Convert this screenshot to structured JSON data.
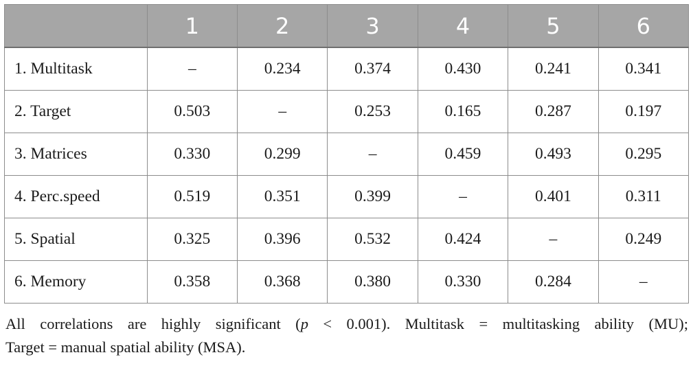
{
  "table": {
    "header": [
      "",
      "1",
      "2",
      "3",
      "4",
      "5",
      "6"
    ],
    "rows": [
      {
        "label": "1. Multitask",
        "cells": [
          "–",
          "0.234",
          "0.374",
          "0.430",
          "0.241",
          "0.341"
        ]
      },
      {
        "label": "2. Target",
        "cells": [
          "0.503",
          "–",
          "0.253",
          "0.165",
          "0.287",
          "0.197"
        ]
      },
      {
        "label": "3. Matrices",
        "cells": [
          "0.330",
          "0.299",
          "–",
          "0.459",
          "0.493",
          "0.295"
        ]
      },
      {
        "label": "4. Perc.speed",
        "cells": [
          "0.519",
          "0.351",
          "0.399",
          "–",
          "0.401",
          "0.311"
        ]
      },
      {
        "label": "5. Spatial",
        "cells": [
          "0.325",
          "0.396",
          "0.532",
          "0.424",
          "–",
          "0.249"
        ]
      },
      {
        "label": "6. Memory",
        "cells": [
          "0.358",
          "0.368",
          "0.380",
          "0.330",
          "0.284",
          "–"
        ]
      }
    ]
  },
  "footnote": {
    "line1_a": "All correlations are highly significant (",
    "line1_p": "p",
    "line1_b": " < 0.001). Multitask = multitasking ability (MU);",
    "line2": "Target = manual spatial ability (MSA)."
  },
  "colors": {
    "header_bg": "#a6a6a6",
    "header_text": "#ffffff",
    "border": "#8c8c8c",
    "text": "#1a1a1a"
  }
}
